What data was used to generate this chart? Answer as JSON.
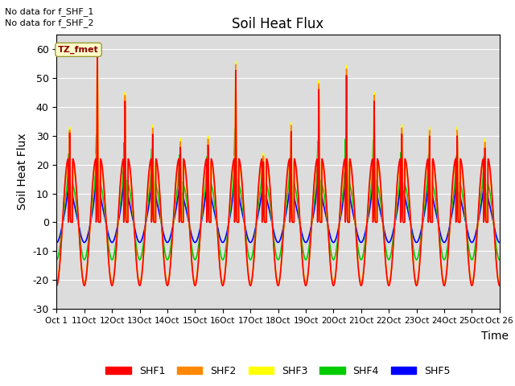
{
  "title": "Soil Heat Flux",
  "ylabel": "Soil Heat Flux",
  "xlabel": "Time",
  "text_no_data_1": "No data for f_SHF_1",
  "text_no_data_2": "No data for f_SHF_2",
  "legend_label": "TZ_fmet",
  "legend_entries": [
    "SHF1",
    "SHF2",
    "SHF3",
    "SHF4",
    "SHF5"
  ],
  "line_colors": [
    "#ff0000",
    "#ff8800",
    "#ffff00",
    "#00cc00",
    "#0000ff"
  ],
  "ylim": [
    -30,
    65
  ],
  "yticks": [
    -30,
    -20,
    -10,
    0,
    10,
    20,
    30,
    40,
    50,
    60
  ],
  "bg_color": "#ffffff",
  "plot_bg": "#dcdcdc",
  "n_days": 16,
  "start_day": 10,
  "shf1_day_amps": [
    31,
    60,
    42,
    31,
    26,
    27,
    53,
    21,
    32,
    46,
    52,
    42,
    31,
    30,
    30,
    26,
    25
  ],
  "shf2_day_amps": [
    32,
    62,
    44,
    33,
    28,
    29,
    55,
    23,
    34,
    48,
    54,
    44,
    33,
    32,
    32,
    28,
    27
  ],
  "shf3_day_amps": [
    33,
    63,
    45,
    34,
    29,
    30,
    56,
    24,
    35,
    49,
    55,
    45,
    34,
    33,
    33,
    29,
    28
  ],
  "shf4_day_amps": [
    15,
    25,
    20,
    18,
    14,
    14,
    26,
    10,
    14,
    21,
    23,
    21,
    16,
    14,
    14,
    13,
    12
  ],
  "shf5_day_amps": [
    7,
    10,
    9,
    8,
    6,
    7,
    11,
    5,
    6,
    9,
    10,
    9,
    8,
    7,
    7,
    6,
    6
  ]
}
